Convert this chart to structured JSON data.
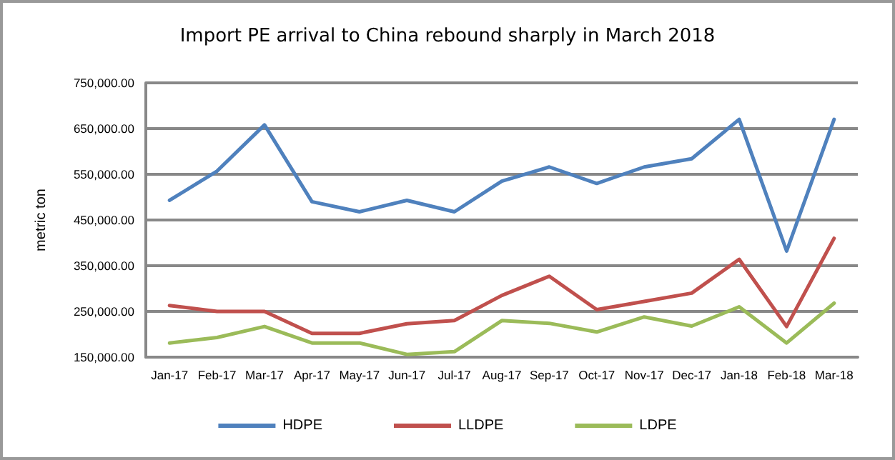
{
  "chart_data": {
    "type": "line",
    "title": "Import PE arrival to China rebound sharply in March 2018",
    "ylabel": "metric ton",
    "categories": [
      "Jan-17",
      "Feb-17",
      "Mar-17",
      "Apr-17",
      "May-17",
      "Jun-17",
      "Jul-17",
      "Aug-17",
      "Sep-17",
      "Oct-17",
      "Nov-17",
      "Dec-17",
      "Jan-18",
      "Feb-18",
      "Mar-18"
    ],
    "series": [
      {
        "name": "HDPE",
        "color": "#4f81bd",
        "values": [
          493000,
          557000,
          658000,
          490000,
          468000,
          493000,
          468000,
          535000,
          566000,
          530000,
          566000,
          584000,
          670000,
          382000,
          670000
        ]
      },
      {
        "name": "LLDPE",
        "color": "#c0504d",
        "values": [
          263000,
          250000,
          250000,
          202000,
          202000,
          223000,
          230000,
          285000,
          327000,
          254000,
          272000,
          290000,
          364000,
          217000,
          410000
        ]
      },
      {
        "name": "LDPE",
        "color": "#9bbb59",
        "values": [
          181000,
          193000,
          217000,
          181000,
          181000,
          156000,
          162000,
          230000,
          224000,
          205000,
          238000,
          218000,
          260000,
          181000,
          268000
        ]
      }
    ],
    "ylim": [
      150000,
      750000
    ],
    "yticks": [
      {
        "value": 150000,
        "label": "150,000.00"
      },
      {
        "value": 250000,
        "label": "250,000.00"
      },
      {
        "value": 350000,
        "label": "350,000.00"
      },
      {
        "value": 450000,
        "label": "450,000.00"
      },
      {
        "value": 550000,
        "label": "550,000.00"
      },
      {
        "value": 650000,
        "label": "650,000.00"
      },
      {
        "value": 750000,
        "label": "750,000.00"
      }
    ],
    "grid": "y",
    "legend": "bottom",
    "marker": "none",
    "line_style": "solid"
  }
}
